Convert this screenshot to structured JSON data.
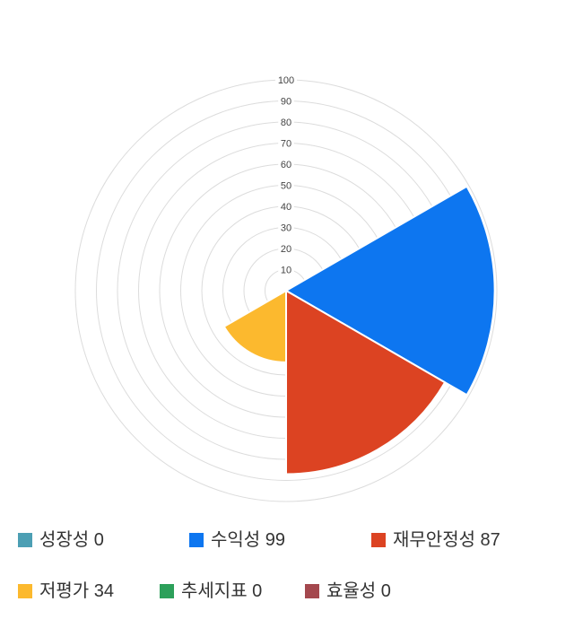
{
  "chart_data": {
    "type": "polar-column",
    "subtype": "nightingale-rose",
    "categories": [
      "성장성",
      "수익성",
      "재무안정성",
      "저평가",
      "추세지표",
      "효율성"
    ],
    "values": [
      0,
      99,
      87,
      34,
      0,
      0
    ],
    "colors": [
      "#4C9FB4",
      "#0D76F0",
      "#DC4322",
      "#FCB92E",
      "#2CA05A",
      "#A4484E"
    ],
    "radial_axis": {
      "min": 0,
      "max": 100,
      "tick_interval": 10,
      "tick_labels": [
        "10",
        "20",
        "30",
        "40",
        "50",
        "60",
        "70",
        "80",
        "90",
        "100"
      ]
    },
    "angle_axis": {
      "zero_at": "top",
      "direction": "clockwise",
      "sector_deg": 60
    },
    "grid": {
      "shape": "concentric-circles",
      "color": "#DCDCDC",
      "visible": true
    },
    "legend_position": "bottom",
    "title": ""
  },
  "legend": {
    "items": [
      {
        "label": "성장성",
        "value": "0",
        "color": "#4C9FB4"
      },
      {
        "label": "수익성",
        "value": "99",
        "color": "#0D76F0"
      },
      {
        "label": "재무안정성",
        "value": "87",
        "color": "#DC4322"
      },
      {
        "label": "저평가",
        "value": "34",
        "color": "#FCB92E"
      },
      {
        "label": "추세지표",
        "value": "0",
        "color": "#2CA05A"
      },
      {
        "label": "효율성",
        "value": "0",
        "color": "#A4484E"
      }
    ]
  },
  "styles": {
    "background": "#FFFFFF",
    "tick_label_color": "#444444",
    "legend_text_color": "#333333",
    "wedge_separator_color": "#FFFFFF"
  }
}
